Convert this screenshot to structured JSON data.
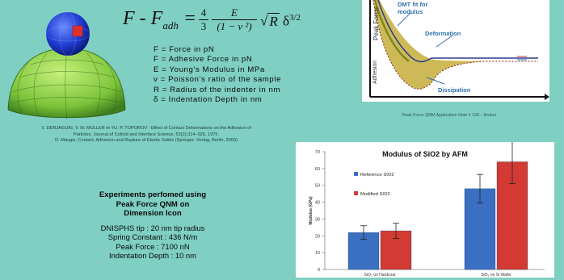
{
  "formula": {
    "lhs_main": "F - F",
    "lhs_sub": "adh",
    "eq": "=",
    "num1": "4",
    "den1": "3",
    "num2": "E",
    "den2": "(1 − ν ²)",
    "sqrt_sym": "√",
    "radicand": "R",
    "delta": " δ",
    "exp": "3/2"
  },
  "definitions": [
    "F = Force in pN",
    "F = Adhesive Force in pN",
    "E = Young’s Modulus in MPa",
    "ν = Poisson’s ratio of the sample",
    "R = Radius of the indenter in nm",
    "δ = Indentation Depth in nm"
  ],
  "references": [
    "V. DERJAGUIN, V. M. MULLER et YU. P. TOPOROV : Effect of Contact Deformations on the Adhesion of",
    "Particles. Journal of Colloid and Interface Science, 53(2):314–326, 1975.",
    "D. Maugis, Contact, Adhesion and Rupture of Elastic Solids (Springer- Verlag, Berlin, 2000)"
  ],
  "experiments": {
    "heading": [
      "Experiments perfomed using",
      "Peak Force QNM on",
      "Dimension Icon"
    ],
    "params": [
      "DNISPHS tip : 20 nm tip radius",
      "Spring Constant : 436 N/m",
      "Peak Force : 7100 nN",
      "Indentation Depth : 10 nm"
    ]
  },
  "force_curve": {
    "dmt_label": [
      "DMT fit for",
      "modulus"
    ],
    "y_label": "Peak Force",
    "adhesion_label": "Adhesion",
    "deformation_label": "Deformation",
    "dissipation_label": "Dissipation",
    "caption": "Peak Force QNM Application Note # 128 – Bruker",
    "colors": {
      "curve_fill": "#c8b244",
      "approach": "#2f3b8f",
      "retract": "#7a8a1e",
      "arrow": "#2f6fb0"
    }
  },
  "chart_data": {
    "type": "bar",
    "title": "Modulus of SiO2 by AFM",
    "ylabel": "Modulus (GPa)",
    "xlabel": "",
    "categories": [
      "SiO₂ on Hardcoat",
      "SiO₂ on Si Wafer"
    ],
    "series": [
      {
        "name": "Reference SIO2",
        "values": [
          22,
          48
        ],
        "errors": [
          4,
          8.5
        ],
        "color": "#3a6fc1"
      },
      {
        "name": "Modified SIO2",
        "values": [
          23,
          64
        ],
        "errors": [
          4.5,
          13
        ],
        "color": "#d23a33"
      }
    ],
    "ylim": [
      0,
      70
    ],
    "yticks": [
      0,
      10,
      20,
      30,
      40,
      50,
      60,
      70
    ],
    "grid": false,
    "legend_position": "top-left"
  }
}
